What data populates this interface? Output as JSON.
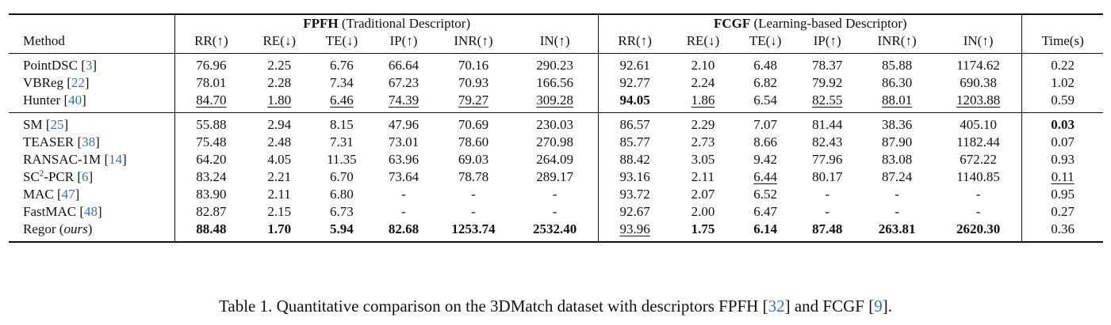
{
  "table": {
    "method_header": "Method",
    "groups": [
      {
        "name": "FPFH",
        "desc": " (Traditional Descriptor)"
      },
      {
        "name": "FCGF",
        "desc": " (Learning-based Descriptor)"
      }
    ],
    "metric_headers": [
      "RR(↑)",
      "RE(↓)",
      "TE(↓)",
      "IP(↑)",
      "INR(↑)",
      "IN(↑)"
    ],
    "time_header": "Time(s)",
    "section1": [
      {
        "name": "PointDSC",
        "cite": "3",
        "fpfh": [
          "76.96",
          "2.25",
          "6.76",
          "66.64",
          "70.16",
          "290.23"
        ],
        "fcgf": [
          "92.61",
          "2.10",
          "6.48",
          "78.37",
          "85.88",
          "1174.62"
        ],
        "time": "0.22"
      },
      {
        "name": "VBReg",
        "cite": "22",
        "fpfh": [
          "78.01",
          "2.28",
          "7.34",
          "67.23",
          "70.93",
          "166.56"
        ],
        "fcgf": [
          "92.77",
          "2.24",
          "6.82",
          "79.92",
          "86.30",
          "690.38"
        ],
        "time": "1.02"
      },
      {
        "name": "Hunter",
        "cite": "40",
        "fpfh": [
          "84.70",
          "1.80",
          "6.46",
          "74.39",
          "79.27",
          "309.28"
        ],
        "fcgf": [
          "94.05",
          "1.86",
          "6.54",
          "82.55",
          "88.01",
          "1203.88"
        ],
        "time": "0.59"
      }
    ],
    "section2": [
      {
        "name": "SM",
        "cite": "25",
        "fpfh": [
          "55.88",
          "2.94",
          "8.15",
          "47.96",
          "70.69",
          "230.03"
        ],
        "fcgf": [
          "86.57",
          "2.29",
          "7.07",
          "81.44",
          "38.36",
          "405.10"
        ],
        "time": "0.03"
      },
      {
        "name": "TEASER",
        "cite": "38",
        "fpfh": [
          "75.48",
          "2.48",
          "7.31",
          "73.01",
          "78.60",
          "270.98"
        ],
        "fcgf": [
          "85.77",
          "2.73",
          "8.66",
          "82.43",
          "87.90",
          "1182.44"
        ],
        "time": "0.07"
      },
      {
        "name": "RANSAC-1M",
        "cite": "14",
        "fpfh": [
          "64.20",
          "4.05",
          "11.35",
          "63.96",
          "69.03",
          "264.09"
        ],
        "fcgf": [
          "88.42",
          "3.05",
          "9.42",
          "77.96",
          "83.08",
          "672.22"
        ],
        "time": "0.93"
      },
      {
        "name_base": "SC",
        "name_sup": "2",
        "name_rest": "-PCR",
        "cite": "6",
        "fpfh": [
          "83.24",
          "2.21",
          "6.70",
          "73.64",
          "78.78",
          "289.17"
        ],
        "fcgf": [
          "93.16",
          "2.11",
          "6.44",
          "80.17",
          "87.24",
          "1140.85"
        ],
        "time": "0.11"
      },
      {
        "name": "MAC",
        "cite": "47",
        "fpfh": [
          "83.90",
          "2.11",
          "6.80",
          "-",
          "-",
          "-"
        ],
        "fcgf": [
          "93.72",
          "2.07",
          "6.52",
          "-",
          "-",
          "-"
        ],
        "time": "0.95"
      },
      {
        "name": "FastMAC",
        "cite": "48",
        "fpfh": [
          "82.87",
          "2.15",
          "6.73",
          "-",
          "-",
          "-"
        ],
        "fcgf": [
          "92.67",
          "2.00",
          "6.47",
          "-",
          "-",
          "-"
        ],
        "time": "0.27"
      },
      {
        "name": "Regor",
        "note": "ours",
        "fpfh": [
          "88.48",
          "1.70",
          "5.94",
          "82.68",
          "1253.74",
          "2532.40"
        ],
        "fcgf": [
          "93.96",
          "1.75",
          "6.14",
          "87.48",
          "263.81",
          "2620.30"
        ],
        "time": "0.36"
      }
    ]
  },
  "caption": {
    "prefix": "Table 1. Quantitative comparison on the 3DMatch dataset with descriptors FPFH ",
    "cite1": "32",
    "middle": " and FCGF ",
    "cite2": "9",
    "suffix": "."
  }
}
